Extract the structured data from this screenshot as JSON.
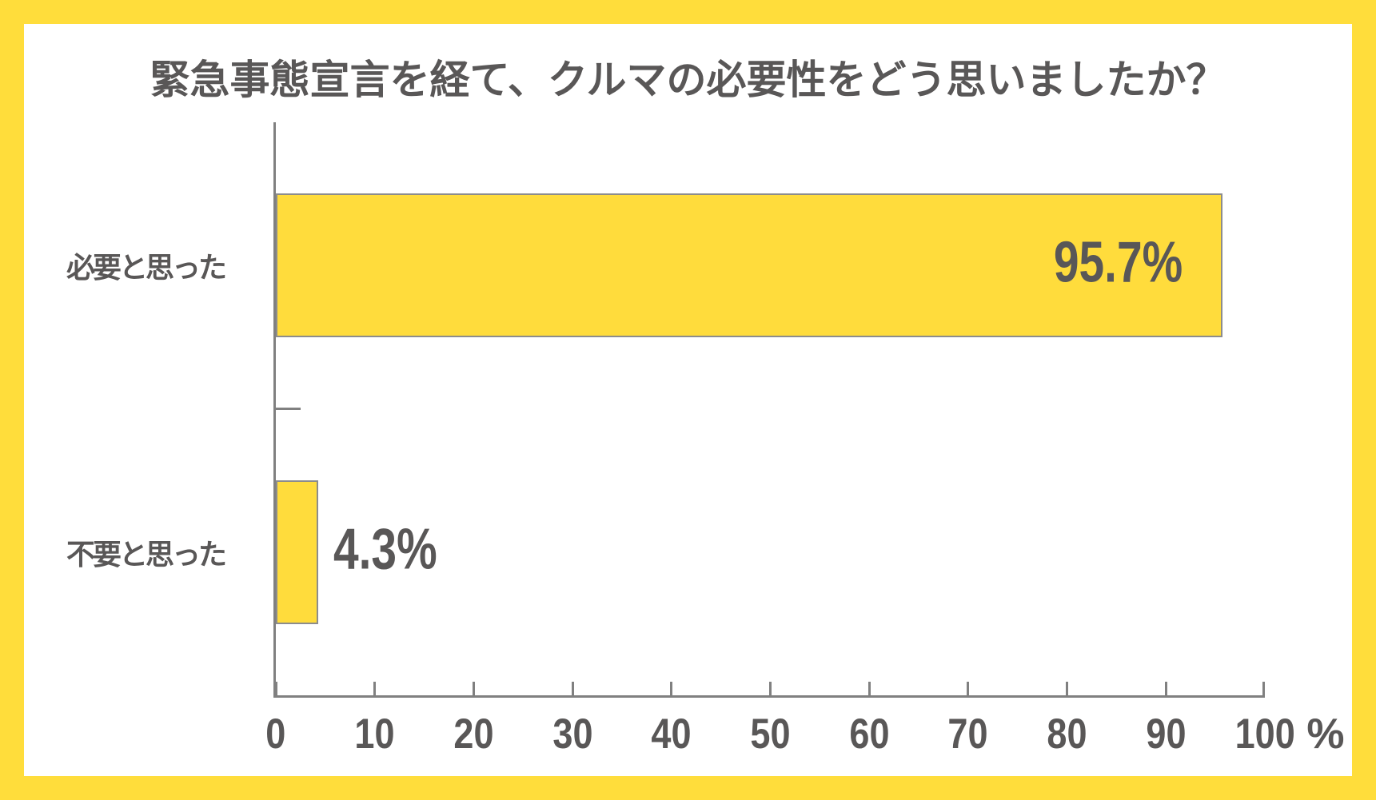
{
  "chart_data": {
    "type": "bar",
    "orientation": "horizontal",
    "title": "緊急事態宣言を経て、クルマの必要性をどう思いましたか？",
    "categories": [
      "必要と思った",
      "不要と思った"
    ],
    "values": [
      95.7,
      4.3
    ],
    "value_labels": [
      "95.7%",
      "4.3%"
    ],
    "value_label_placement": [
      "inside-end",
      "outside-end"
    ],
    "xlabel": "",
    "ylabel": "",
    "x_unit": "%",
    "xlim": [
      0,
      100
    ],
    "x_ticks": [
      0,
      10,
      20,
      30,
      40,
      50,
      60,
      70,
      80,
      90,
      100
    ],
    "grid": false,
    "legend": false,
    "bar_thickness_ratio": 0.502,
    "colors": {
      "frame": "#FFDD3B",
      "bar_fill": "#FFDC3C",
      "bar_border": "#8C8C8C",
      "axis": "#808080",
      "text": "#595757",
      "background": "#FFFFFF"
    }
  }
}
